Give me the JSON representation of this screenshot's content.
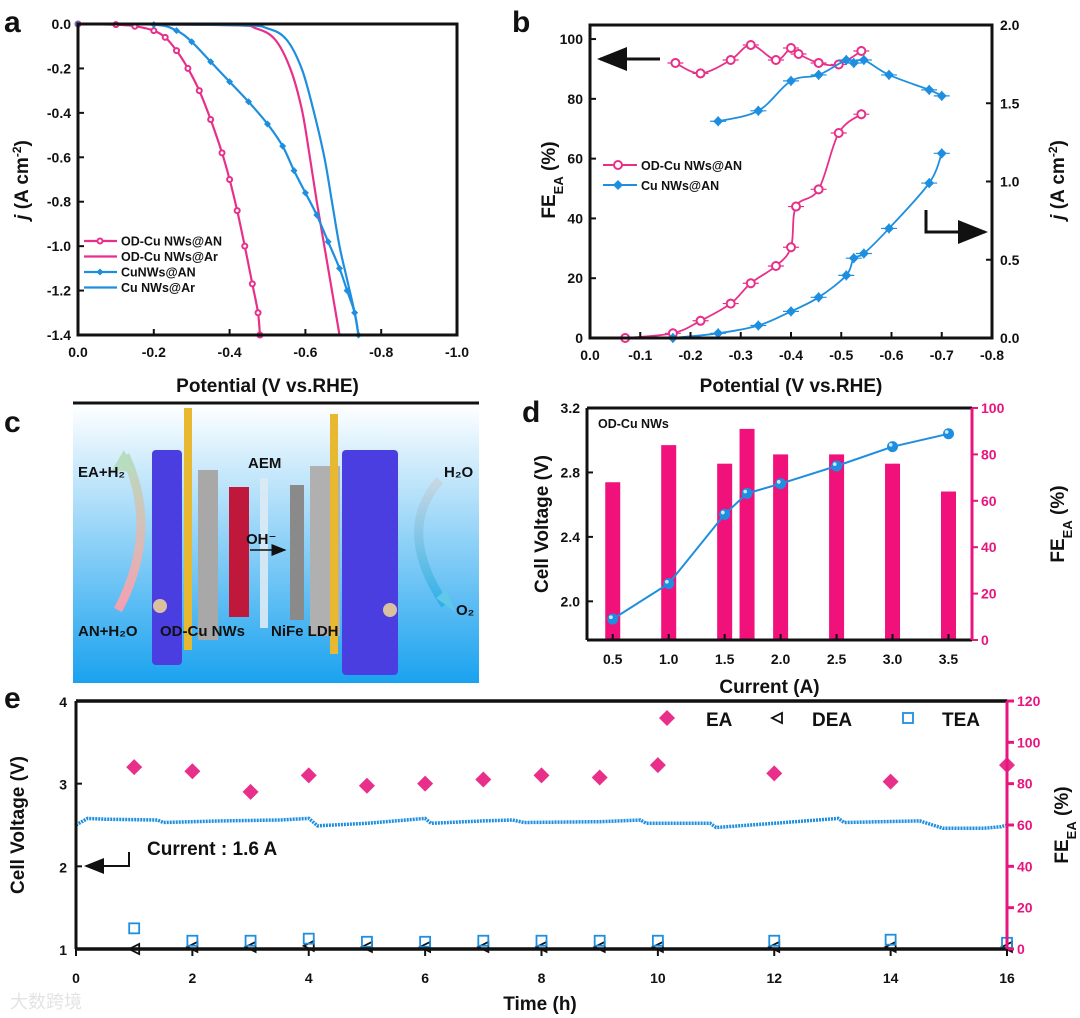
{
  "panel_labels": [
    "a",
    "b",
    "c",
    "d",
    "e"
  ],
  "colors": {
    "pink": "#e8308a",
    "bar_pink": "#f0117a",
    "blue": "#1e8fe0",
    "axis_pink": "#e8157e"
  },
  "chart_data": [
    {
      "id": "a",
      "type": "line",
      "xlabel": "Potential (V vs.RHE)",
      "ylabel": {
        "italic": "j",
        "text": " (A cm",
        "sup": "-2",
        "end": ")"
      },
      "xlim": [
        0,
        -1.0
      ],
      "ylim": [
        0,
        -1.4
      ],
      "xticks": [
        "0.0",
        "-0.2",
        "-0.4",
        "-0.6",
        "-0.8",
        "-1.0"
      ],
      "yticks": [
        "0.0",
        "-0.2",
        "-0.4",
        "-0.6",
        "-0.8",
        "-1.0",
        "-1.2",
        "-1.4"
      ],
      "legend_position": "bottom-left",
      "series": [
        {
          "name": "OD-Cu NWs@AN",
          "color": "#e8308a",
          "marker": "circle",
          "points": [
            [
              0,
              0
            ],
            [
              -0.1,
              -0.003
            ],
            [
              -0.15,
              -0.01
            ],
            [
              -0.2,
              -0.03
            ],
            [
              -0.23,
              -0.06
            ],
            [
              -0.26,
              -0.12
            ],
            [
              -0.29,
              -0.2
            ],
            [
              -0.32,
              -0.3
            ],
            [
              -0.35,
              -0.43
            ],
            [
              -0.38,
              -0.58
            ],
            [
              -0.4,
              -0.7
            ],
            [
              -0.42,
              -0.84
            ],
            [
              -0.44,
              -1.0
            ],
            [
              -0.46,
              -1.17
            ],
            [
              -0.475,
              -1.3
            ],
            [
              -0.48,
              -1.4
            ]
          ]
        },
        {
          "name": "OD-Cu NWs@Ar",
          "color": "#e8308a",
          "marker": "none",
          "points": [
            [
              0,
              0
            ],
            [
              -0.4,
              -0.005
            ],
            [
              -0.47,
              -0.02
            ],
            [
              -0.52,
              -0.07
            ],
            [
              -0.56,
              -0.2
            ],
            [
              -0.59,
              -0.38
            ],
            [
              -0.61,
              -0.58
            ],
            [
              -0.63,
              -0.8
            ],
            [
              -0.65,
              -1.0
            ],
            [
              -0.67,
              -1.2
            ],
            [
              -0.69,
              -1.4
            ]
          ]
        },
        {
          "name": "CuNWs@AN",
          "color": "#1e8fe0",
          "marker": "diamond",
          "points": [
            [
              0,
              0
            ],
            [
              -0.2,
              -0.003
            ],
            [
              -0.26,
              -0.03
            ],
            [
              -0.3,
              -0.08
            ],
            [
              -0.35,
              -0.17
            ],
            [
              -0.4,
              -0.26
            ],
            [
              -0.45,
              -0.35
            ],
            [
              -0.5,
              -0.45
            ],
            [
              -0.54,
              -0.55
            ],
            [
              -0.57,
              -0.66
            ],
            [
              -0.6,
              -0.76
            ],
            [
              -0.63,
              -0.86
            ],
            [
              -0.66,
              -0.98
            ],
            [
              -0.69,
              -1.1
            ],
            [
              -0.71,
              -1.2
            ],
            [
              -0.73,
              -1.3
            ],
            [
              -0.74,
              -1.4
            ]
          ]
        },
        {
          "name": "Cu NWs@Ar",
          "color": "#1e8fe0",
          "marker": "none",
          "points": [
            [
              0,
              0
            ],
            [
              -0.42,
              -0.005
            ],
            [
              -0.5,
              -0.02
            ],
            [
              -0.55,
              -0.07
            ],
            [
              -0.59,
              -0.2
            ],
            [
              -0.62,
              -0.38
            ],
            [
              -0.65,
              -0.6
            ],
            [
              -0.67,
              -0.8
            ],
            [
              -0.69,
              -1.0
            ],
            [
              -0.71,
              -1.15
            ],
            [
              -0.73,
              -1.3
            ],
            [
              -0.74,
              -1.4
            ]
          ]
        }
      ]
    },
    {
      "id": "b",
      "type": "line",
      "xlabel": "Potential (V vs.RHE)",
      "ylabel_left": {
        "main": "FE",
        "sub": "EA",
        "end": " (%)"
      },
      "ylabel_right": {
        "italic": "j",
        "text": " (A cm",
        "sup": "-2",
        "end": ")"
      },
      "xlim": [
        0,
        -0.8
      ],
      "ylim_left": [
        0,
        104.7
      ],
      "ylim_right": [
        0,
        2.0
      ],
      "xticks": [
        "0.0",
        "-0.1",
        "-0.2",
        "-0.3",
        "-0.4",
        "-0.5",
        "-0.6",
        "-0.7",
        "-0.8"
      ],
      "yticks_left": [
        "0",
        "20",
        "40",
        "60",
        "80",
        "100"
      ],
      "yticks_right": [
        "0.0",
        "0.5",
        "1.0",
        "1.5",
        "2.0"
      ],
      "legend_position": "middle-left",
      "series": [
        {
          "name": "OD-Cu NWs@AN",
          "color": "#e8308a",
          "marker": "circle",
          "axis": "left",
          "quantity": "FE (%)",
          "x": [
            -0.17,
            -0.22,
            -0.28,
            -0.32,
            -0.37,
            -0.4,
            -0.415,
            -0.455,
            -0.495,
            -0.54
          ],
          "y": [
            92,
            88.5,
            93,
            98,
            93,
            97,
            95,
            92,
            91.5,
            96
          ]
        },
        {
          "name": "Cu NWs@AN",
          "color": "#1e8fe0",
          "marker": "diamond",
          "axis": "left",
          "quantity": "FE (%)",
          "x": [
            -0.255,
            -0.335,
            -0.4,
            -0.455,
            -0.51,
            -0.525,
            -0.545,
            -0.595,
            -0.675,
            -0.7
          ],
          "y": [
            72.5,
            76,
            86,
            88,
            93,
            92,
            93,
            88,
            83,
            81
          ]
        },
        {
          "name": "OD-Cu NWs@AN",
          "color": "#e8308a",
          "marker": "circle",
          "axis": "right",
          "quantity": "j (A cm-2)",
          "x": [
            -0.07,
            -0.165,
            -0.22,
            -0.28,
            -0.32,
            -0.37,
            -0.4,
            -0.41,
            -0.455,
            -0.495,
            -0.54
          ],
          "y": [
            0,
            0.03,
            0.11,
            0.22,
            0.35,
            0.46,
            0.58,
            0.84,
            0.95,
            1.31,
            1.43
          ]
        },
        {
          "name": "Cu NWs@AN",
          "color": "#1e8fe0",
          "marker": "diamond",
          "axis": "right",
          "quantity": "j (A cm-2)",
          "x": [
            -0.165,
            -0.255,
            -0.335,
            -0.4,
            -0.455,
            -0.51,
            -0.525,
            -0.545,
            -0.595,
            -0.675,
            -0.7
          ],
          "y": [
            0,
            0.03,
            0.08,
            0.17,
            0.26,
            0.4,
            0.51,
            0.54,
            0.7,
            0.99,
            1.18
          ]
        }
      ]
    },
    {
      "id": "d",
      "type": "bar",
      "annotation": "OD-Cu NWs",
      "xlabel": "Current (A)",
      "ylabel_left": "Cell Voltage (V)",
      "ylabel_right": {
        "main": "FE",
        "sub": "EA",
        "end": " (%)"
      },
      "xlim": [
        0.27,
        3.71
      ],
      "ylim_left": [
        1.76,
        3.2
      ],
      "ylim_right": [
        0,
        100
      ],
      "xticks": [
        "0.5",
        "1.0",
        "1.5",
        "2.0",
        "2.5",
        "3.0",
        "3.5"
      ],
      "yticks_left": [
        "2.0",
        "2.4",
        "2.8",
        "3.2"
      ],
      "yticks_right": [
        "0",
        "20",
        "40",
        "60",
        "80",
        "100"
      ],
      "categories": [
        0.5,
        1.0,
        1.5,
        1.7,
        2.0,
        2.5,
        3.0,
        3.5
      ],
      "series": [
        {
          "name": "FE_EA (%)",
          "type": "bar",
          "axis": "right",
          "color": "#f0117a",
          "values": [
            68,
            84,
            76,
            91,
            80,
            80,
            76,
            64
          ]
        },
        {
          "name": "Cell Voltage (V)",
          "type": "line",
          "axis": "left",
          "color": "#1e8fe0",
          "values": [
            1.89,
            2.11,
            2.54,
            2.67,
            2.73,
            2.84,
            2.96,
            3.04
          ]
        }
      ]
    },
    {
      "id": "e",
      "type": "scatter",
      "xlabel": "Time (h)",
      "ylabel_left": "Cell Voltage (V)",
      "ylabel_right": {
        "main": "FE",
        "sub": "EA",
        "end": " (%)"
      },
      "xlim": [
        0,
        16
      ],
      "ylim_left": [
        1,
        4
      ],
      "ylim_right": [
        0,
        120
      ],
      "xticks": [
        "0",
        "2",
        "4",
        "6",
        "8",
        "10",
        "12",
        "14",
        "16"
      ],
      "yticks_left": [
        "1",
        "2",
        "3",
        "4"
      ],
      "yticks_right": [
        "0",
        "20",
        "40",
        "60",
        "80",
        "100",
        "120"
      ],
      "annotation": "Current : 1.6 A",
      "legend_position": "top-right",
      "legend": [
        "EA",
        "DEA",
        "TEA"
      ],
      "voltage_trace": [
        [
          0,
          2.5
        ],
        [
          0.2,
          2.58
        ],
        [
          0.5,
          2.57
        ],
        [
          1.4,
          2.56
        ],
        [
          1.5,
          2.53
        ],
        [
          2.5,
          2.55
        ],
        [
          3.5,
          2.56
        ],
        [
          4.0,
          2.58
        ],
        [
          4.15,
          2.49
        ],
        [
          5,
          2.52
        ],
        [
          6,
          2.58
        ],
        [
          6.1,
          2.52
        ],
        [
          7,
          2.55
        ],
        [
          7.5,
          2.56
        ],
        [
          7.7,
          2.53
        ],
        [
          9,
          2.54
        ],
        [
          9.7,
          2.56
        ],
        [
          9.8,
          2.52
        ],
        [
          10.9,
          2.52
        ],
        [
          11.0,
          2.47
        ],
        [
          12,
          2.52
        ],
        [
          13.1,
          2.58
        ],
        [
          13.2,
          2.53
        ],
        [
          14.5,
          2.55
        ],
        [
          14.9,
          2.46
        ],
        [
          15.6,
          2.46
        ],
        [
          15.9,
          2.48
        ],
        [
          16,
          2.5
        ]
      ],
      "series": [
        {
          "name": "EA",
          "marker": "diamond",
          "color": "#e8308a",
          "axis": "right",
          "x": [
            1,
            2,
            3,
            4,
            5,
            6,
            7,
            8,
            9,
            10,
            12,
            14,
            16
          ],
          "y": [
            88,
            86,
            76,
            84,
            79,
            80,
            82,
            84,
            83,
            89,
            85,
            81,
            89
          ]
        },
        {
          "name": "DEA",
          "marker": "triangle-left",
          "color": "#111111",
          "axis": "right",
          "x": [
            1,
            2,
            3,
            4,
            5,
            6,
            7,
            8,
            9,
            10,
            12,
            14,
            16
          ],
          "y": [
            0,
            1,
            1,
            1.5,
            1,
            1,
            1,
            1,
            1,
            1,
            1,
            1,
            1
          ]
        },
        {
          "name": "TEA",
          "marker": "square",
          "color": "#1e8fe0",
          "axis": "right",
          "x": [
            1,
            2,
            3,
            4,
            5,
            6,
            7,
            8,
            9,
            10,
            12,
            14,
            16
          ],
          "y": [
            10,
            4,
            4,
            5,
            3.5,
            3.5,
            4,
            4,
            4,
            4,
            4,
            4.5,
            3
          ]
        }
      ]
    }
  ],
  "diagram_c": {
    "labels": {
      "ea_h2": "EA+H₂",
      "aem": "AEM",
      "h2o": "H₂O",
      "oh": "OH⁻",
      "an_h2o": "AN+H₂O",
      "odcu": "OD-Cu NWs",
      "nife": "NiFe LDH",
      "o2": "O₂"
    }
  },
  "watermark": "大数跨境"
}
